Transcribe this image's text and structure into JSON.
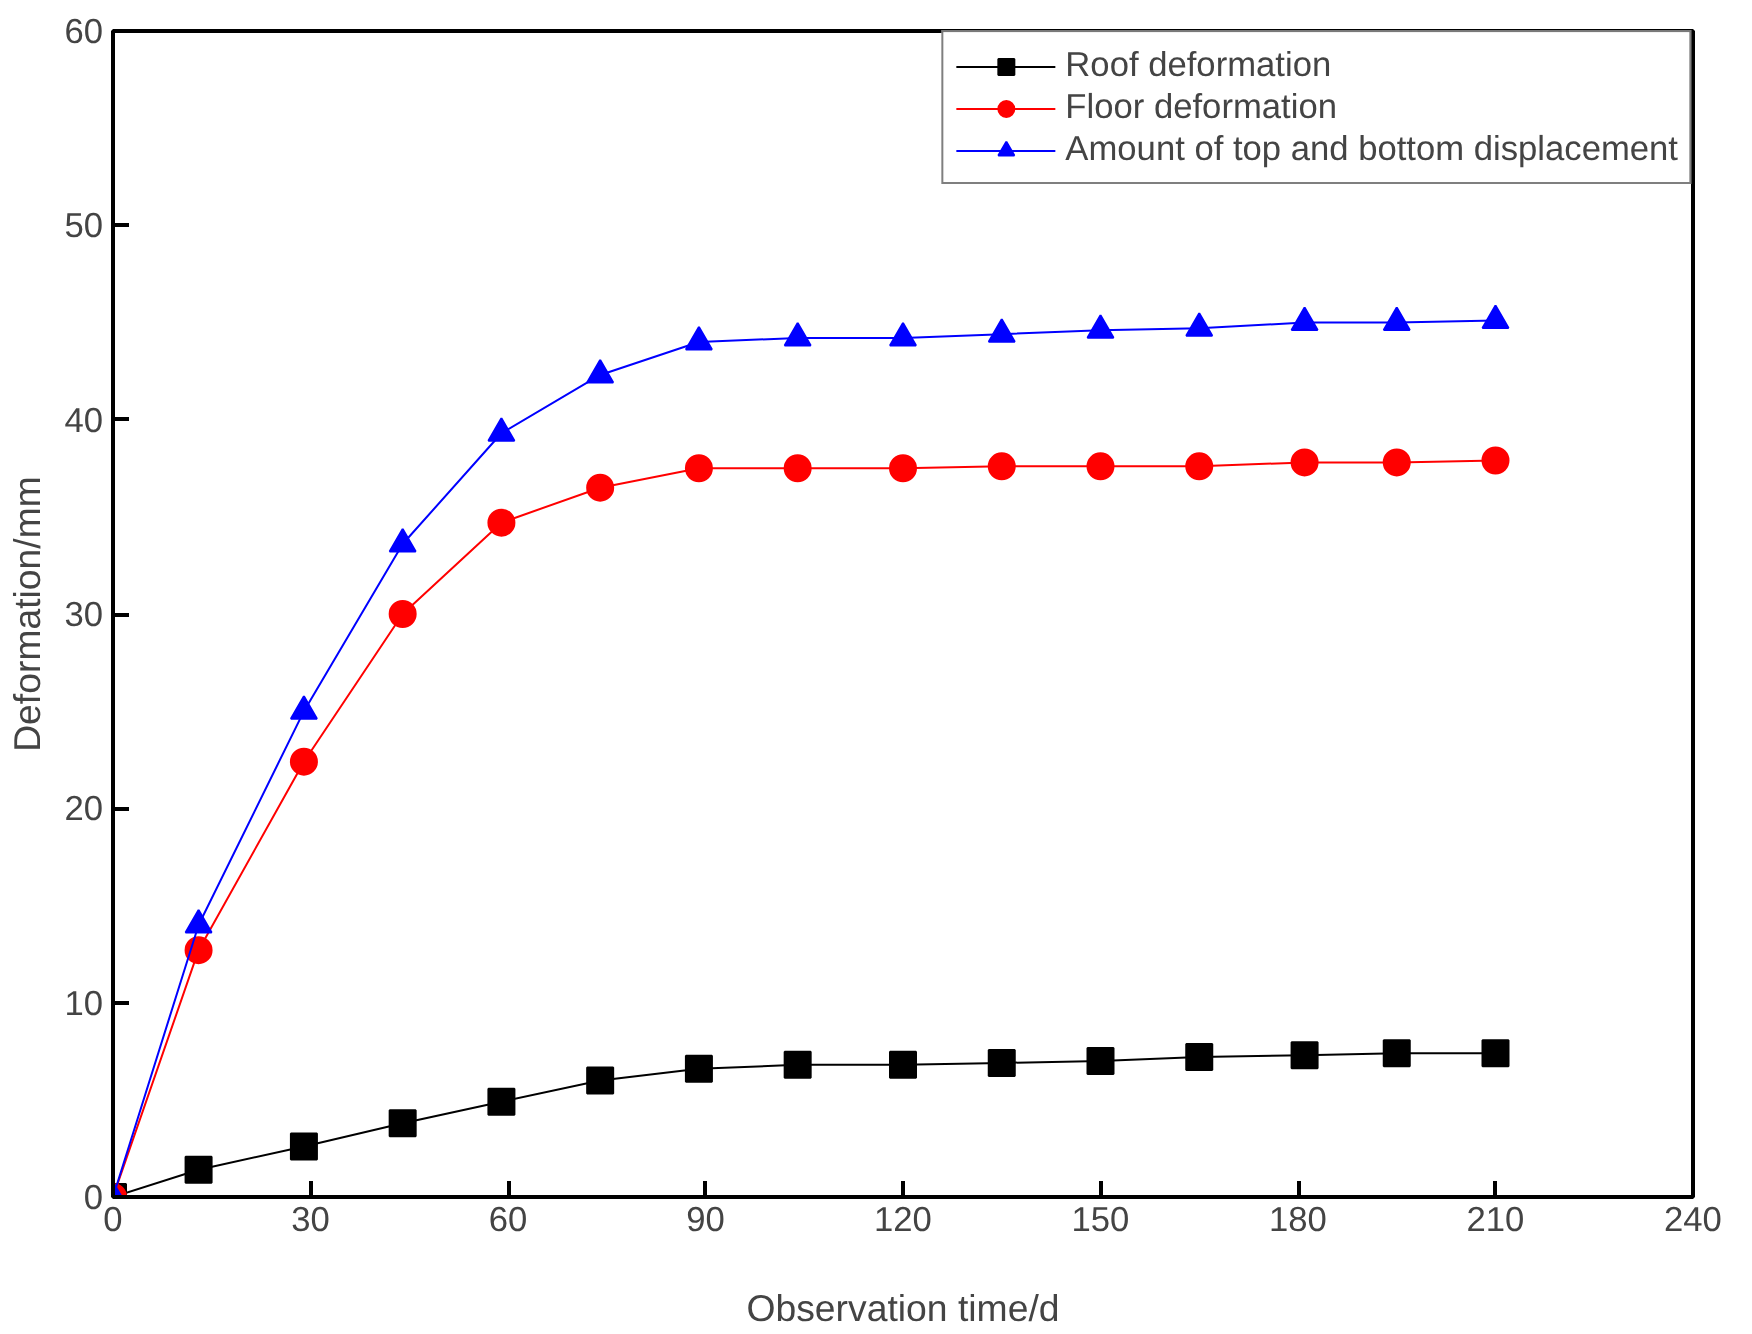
{
  "chart_data": {
    "type": "line",
    "xlabel": "Observation time/d",
    "ylabel": "Deformation/mm",
    "xlim": [
      0,
      240
    ],
    "xticks": [
      0,
      30,
      60,
      90,
      120,
      150,
      180,
      210,
      240
    ],
    "ylim": [
      0,
      60
    ],
    "yticks": [
      0,
      10,
      20,
      30,
      40,
      50,
      60
    ],
    "grid": false,
    "legend": "top right",
    "x": [
      0,
      13,
      29,
      44,
      59,
      74,
      89,
      104,
      120,
      135,
      150,
      165,
      181,
      195,
      210
    ],
    "series": [
      {
        "name": "Roof deformation",
        "color": "#000000",
        "marker": "square",
        "values": [
          0,
          1.4,
          2.6,
          3.8,
          4.9,
          6.0,
          6.6,
          6.8,
          6.8,
          6.9,
          7.0,
          7.2,
          7.3,
          7.4,
          7.4
        ]
      },
      {
        "name": "Floor deformation",
        "color": "#ff0000",
        "marker": "circle",
        "values": [
          0,
          12.7,
          22.4,
          30.0,
          34.7,
          36.5,
          37.5,
          37.5,
          37.5,
          37.6,
          37.6,
          37.6,
          37.8,
          37.8,
          37.9
        ]
      },
      {
        "name": "Amount of top and bottom displacement",
        "color": "#0000ff",
        "marker": "triangle",
        "values": [
          0,
          14.0,
          25.0,
          33.6,
          39.3,
          42.3,
          44.0,
          44.2,
          44.2,
          44.4,
          44.6,
          44.7,
          45.0,
          45.0,
          45.1
        ]
      }
    ]
  }
}
